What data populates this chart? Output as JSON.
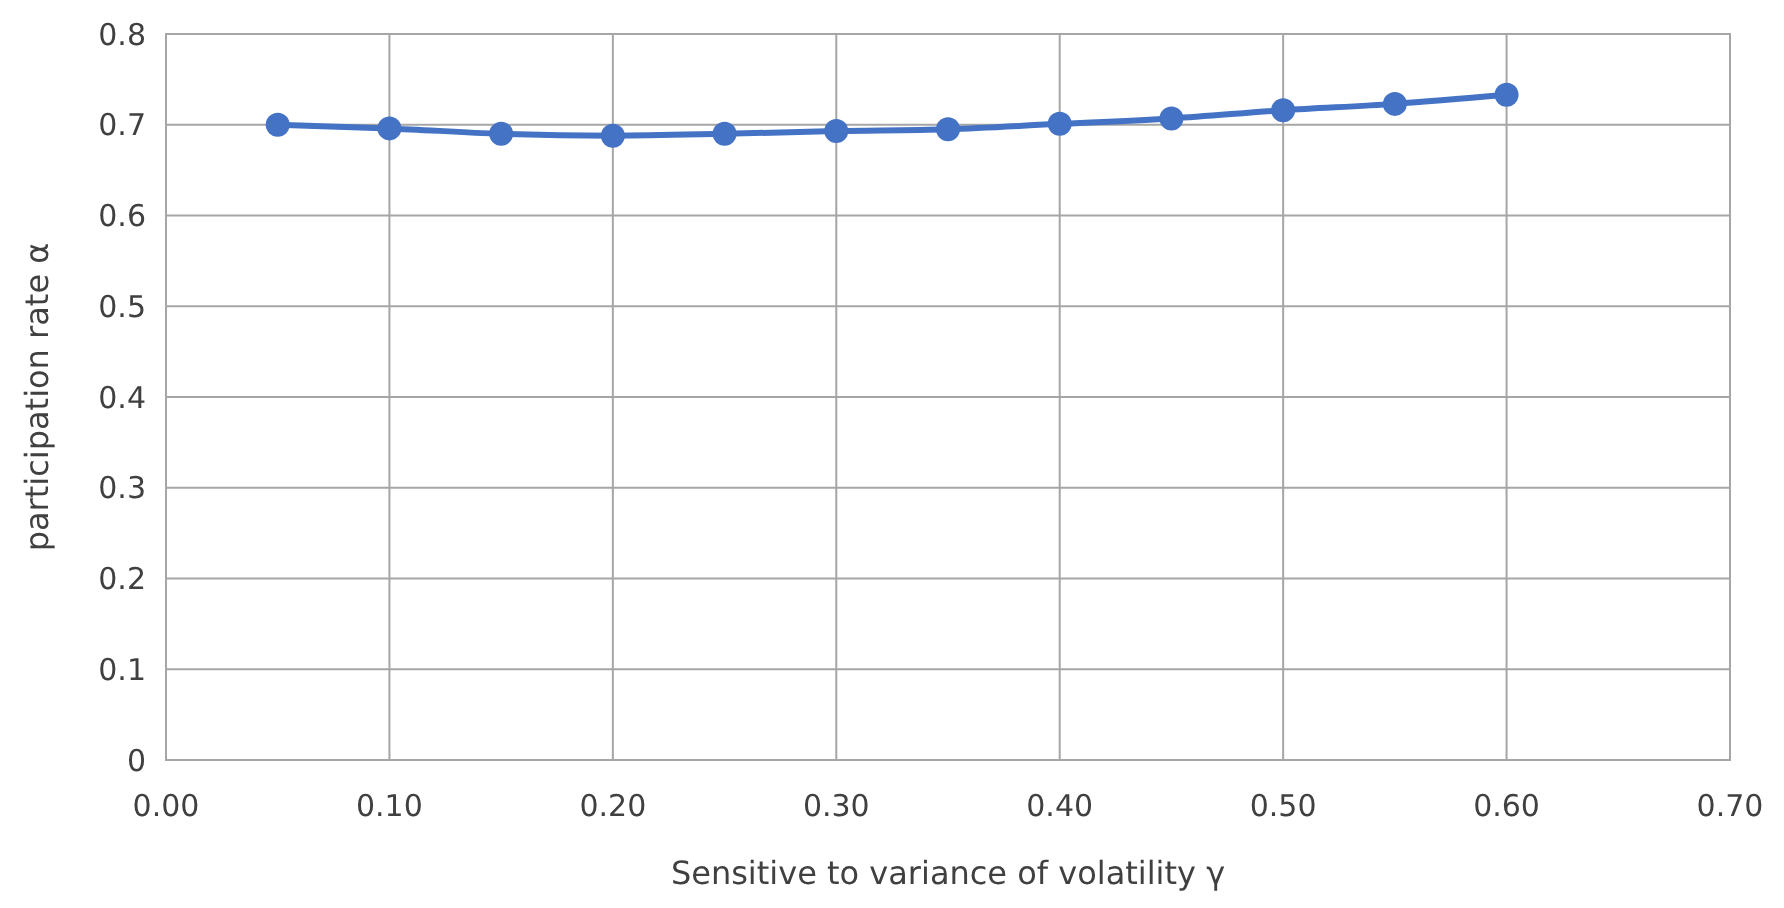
{
  "chart_data": {
    "type": "line",
    "xlabel": "Sensitive to variance of volatility γ",
    "ylabel": "participation rate α",
    "x": [
      0.05,
      0.1,
      0.15,
      0.2,
      0.25,
      0.3,
      0.35,
      0.4,
      0.45,
      0.5,
      0.55,
      0.6
    ],
    "series": [
      {
        "color": "#4472c4",
        "values": [
          0.7,
          0.696,
          0.69,
          0.688,
          0.69,
          0.693,
          0.695,
          0.701,
          0.707,
          0.716,
          0.723,
          0.733
        ]
      }
    ],
    "xlim": [
      0,
      0.7
    ],
    "xticks": [
      {
        "value": 0,
        "label": "0.00"
      },
      {
        "value": 0.1,
        "label": "0.10"
      },
      {
        "value": 0.2,
        "label": "0.20"
      },
      {
        "value": 0.3,
        "label": "0.30"
      },
      {
        "value": 0.4,
        "label": "0.40"
      },
      {
        "value": 0.5,
        "label": "0.50"
      },
      {
        "value": 0.6,
        "label": "0.60"
      },
      {
        "value": 0.7,
        "label": "0.70"
      }
    ],
    "ylim": [
      0,
      0.8
    ],
    "yticks": [
      0,
      0.1,
      0.2,
      0.3,
      0.4,
      0.5,
      0.6,
      0.7,
      0.8
    ],
    "grid": true,
    "marker": "circle",
    "line_style": "solid"
  }
}
